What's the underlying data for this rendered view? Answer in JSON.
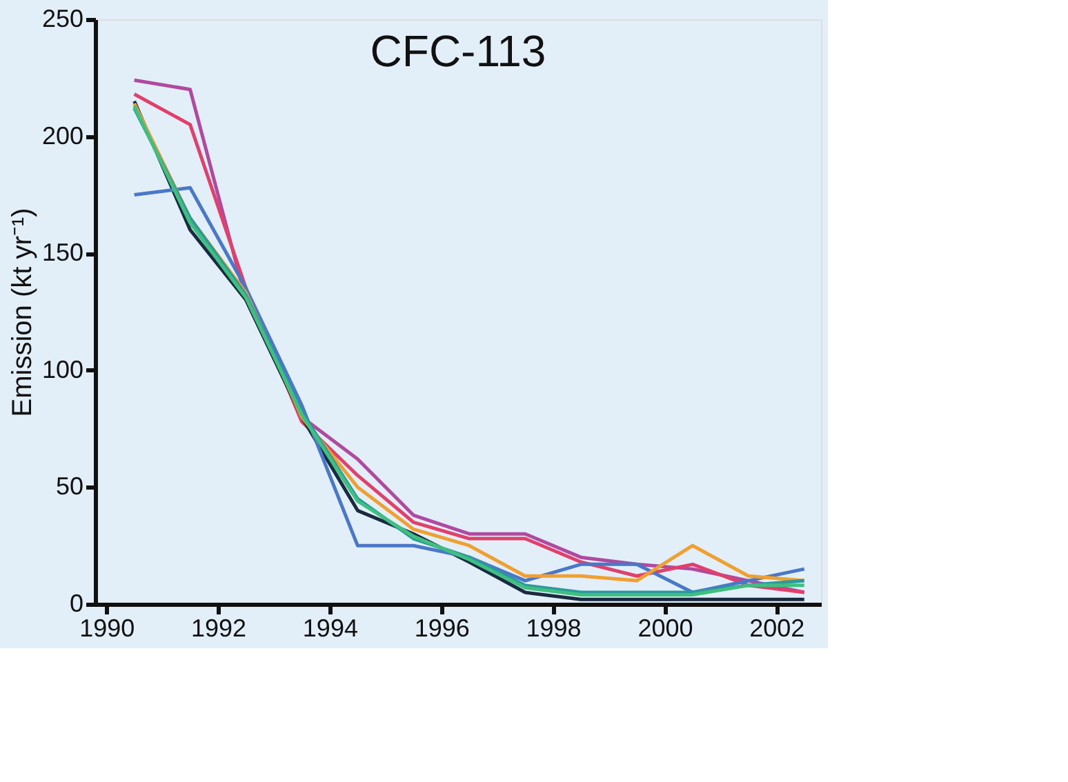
{
  "chart_data": {
    "type": "line",
    "title": "CFC-113",
    "ylabel": "Emission (kt yr⁻¹)",
    "x": [
      1990.5,
      1991.5,
      1992.5,
      1993.5,
      1994.5,
      1995.5,
      1996.5,
      1997.5,
      1998.5,
      1999.5,
      2000.5,
      2001.5,
      2002.5
    ],
    "series": [
      {
        "color": "#b04aa0",
        "values": [
          224,
          220,
          130,
          80,
          62,
          38,
          30,
          30,
          20,
          17,
          15,
          10,
          5
        ]
      },
      {
        "color": "#e0406a",
        "values": [
          218,
          205,
          135,
          78,
          55,
          35,
          28,
          28,
          18,
          12,
          17,
          8,
          5
        ]
      },
      {
        "color": "#1a2a40",
        "values": [
          215,
          160,
          130,
          80,
          40,
          30,
          18,
          5,
          2,
          2,
          2,
          2,
          2
        ]
      },
      {
        "color": "#4a78c8",
        "values": [
          175,
          178,
          135,
          85,
          25,
          25,
          20,
          10,
          17,
          17,
          5,
          10,
          15
        ]
      },
      {
        "color": "#f0a030",
        "values": [
          214,
          165,
          133,
          80,
          50,
          32,
          25,
          12,
          12,
          10,
          25,
          12,
          10
        ]
      },
      {
        "color": "#2a9a9a",
        "values": [
          212,
          165,
          132,
          82,
          45,
          28,
          20,
          8,
          5,
          5,
          5,
          8,
          10
        ]
      },
      {
        "color": "#40c080",
        "values": [
          213,
          163,
          131,
          81,
          44,
          29,
          19,
          7,
          4,
          4,
          4,
          8,
          8
        ]
      }
    ],
    "xlim": [
      1989.8,
      2002.8
    ],
    "xticks": [
      1990,
      1992,
      1994,
      1996,
      1998,
      2000,
      2002
    ],
    "ylim": [
      0,
      250
    ],
    "yticks": [
      0,
      50,
      100,
      150,
      200,
      250
    ],
    "grid": false,
    "legend": false,
    "marker": "none",
    "line_style": "solid"
  }
}
